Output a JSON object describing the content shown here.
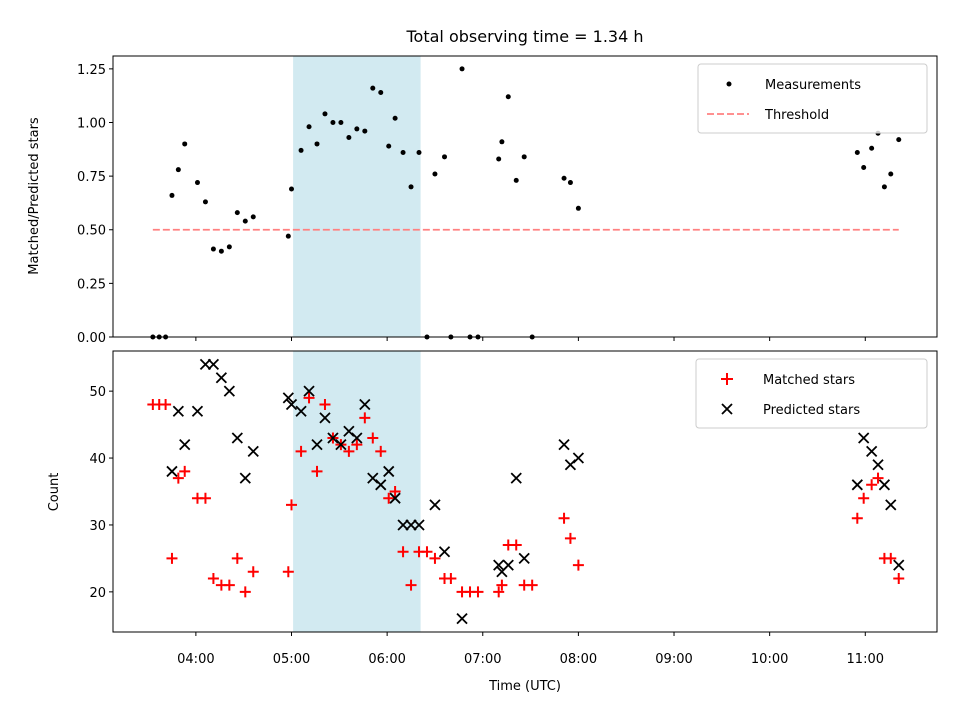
{
  "chart_data": [
    {
      "type": "scatter",
      "title": "Total observing time = 1.34 h",
      "xlabel": "",
      "ylabel": "Matched/Predicted stars",
      "xlim": [
        "03:08",
        "11:45"
      ],
      "ylim": [
        0,
        1.31
      ],
      "yticks": [
        0.0,
        0.25,
        0.5,
        0.75,
        1.0,
        1.25
      ],
      "ytick_labels": [
        "0.00",
        "0.25",
        "0.50",
        "0.75",
        "1.00",
        "1.25"
      ],
      "xticks": [
        "04:00",
        "05:00",
        "06:00",
        "07:00",
        "08:00",
        "09:00",
        "10:00",
        "11:00"
      ],
      "shaded_span": [
        "05:01",
        "06:21"
      ],
      "grid": false,
      "legend_placement": "top-right",
      "series": [
        {
          "name": "Measurements",
          "marker": "dot",
          "color": "#000000",
          "points": [
            [
              "03:33",
              0.0
            ],
            [
              "03:37",
              0.0
            ],
            [
              "03:41",
              0.0
            ],
            [
              "03:45",
              0.66
            ],
            [
              "03:49",
              0.78
            ],
            [
              "03:53",
              0.9
            ],
            [
              "04:01",
              0.72
            ],
            [
              "04:06",
              0.63
            ],
            [
              "04:11",
              0.41
            ],
            [
              "04:16",
              0.4
            ],
            [
              "04:21",
              0.42
            ],
            [
              "04:26",
              0.58
            ],
            [
              "04:31",
              0.54
            ],
            [
              "04:36",
              0.56
            ],
            [
              "04:58",
              0.47
            ],
            [
              "05:00",
              0.69
            ],
            [
              "05:06",
              0.87
            ],
            [
              "05:11",
              0.98
            ],
            [
              "05:16",
              0.9
            ],
            [
              "05:21",
              1.04
            ],
            [
              "05:26",
              1.0
            ],
            [
              "05:31",
              1.0
            ],
            [
              "05:36",
              0.93
            ],
            [
              "05:41",
              0.97
            ],
            [
              "05:46",
              0.96
            ],
            [
              "05:51",
              1.16
            ],
            [
              "05:56",
              1.14
            ],
            [
              "06:01",
              0.89
            ],
            [
              "06:05",
              1.02
            ],
            [
              "06:10",
              0.86
            ],
            [
              "06:15",
              0.7
            ],
            [
              "06:20",
              0.86
            ],
            [
              "06:25",
              0.0
            ],
            [
              "06:30",
              0.76
            ],
            [
              "06:36",
              0.84
            ],
            [
              "06:40",
              0.0
            ],
            [
              "06:47",
              1.25
            ],
            [
              "06:52",
              0.0
            ],
            [
              "06:57",
              0.0
            ],
            [
              "07:10",
              0.83
            ],
            [
              "07:12",
              0.91
            ],
            [
              "07:16",
              1.12
            ],
            [
              "07:21",
              0.73
            ],
            [
              "07:26",
              0.84
            ],
            [
              "07:31",
              0.0
            ],
            [
              "07:51",
              0.74
            ],
            [
              "07:55",
              0.72
            ],
            [
              "08:00",
              0.6
            ],
            [
              "10:55",
              0.86
            ],
            [
              "10:59",
              0.79
            ],
            [
              "11:04",
              0.88
            ],
            [
              "11:08",
              0.95
            ],
            [
              "11:12",
              0.7
            ],
            [
              "11:16",
              0.76
            ],
            [
              "11:21",
              0.92
            ]
          ]
        },
        {
          "name": "Threshold",
          "marker": "dashed-line",
          "color": "#ff8080",
          "points": [
            [
              "03:33",
              0.5
            ],
            [
              "11:21",
              0.5
            ]
          ]
        }
      ]
    },
    {
      "type": "scatter",
      "title": "",
      "xlabel": "Time (UTC)",
      "ylabel": "Count",
      "xlim": [
        "03:08",
        "11:45"
      ],
      "ylim": [
        14,
        56
      ],
      "yticks": [
        20,
        30,
        40,
        50
      ],
      "ytick_labels": [
        "20",
        "30",
        "40",
        "50"
      ],
      "xticks": [
        "04:00",
        "05:00",
        "06:00",
        "07:00",
        "08:00",
        "09:00",
        "10:00",
        "11:00"
      ],
      "shaded_span": [
        "05:01",
        "06:21"
      ],
      "grid": false,
      "legend_placement": "top-right",
      "series": [
        {
          "name": "Matched stars",
          "marker": "plus",
          "color": "#ff0000",
          "points": [
            [
              "03:33",
              48
            ],
            [
              "03:37",
              48
            ],
            [
              "03:41",
              48
            ],
            [
              "03:45",
              25
            ],
            [
              "03:49",
              37
            ],
            [
              "03:53",
              38
            ],
            [
              "04:01",
              34
            ],
            [
              "04:06",
              34
            ],
            [
              "04:11",
              22
            ],
            [
              "04:16",
              21
            ],
            [
              "04:21",
              21
            ],
            [
              "04:26",
              25
            ],
            [
              "04:31",
              20
            ],
            [
              "04:36",
              23
            ],
            [
              "04:58",
              23
            ],
            [
              "05:00",
              33
            ],
            [
              "05:06",
              41
            ],
            [
              "05:11",
              49
            ],
            [
              "05:16",
              38
            ],
            [
              "05:21",
              48
            ],
            [
              "05:26",
              43
            ],
            [
              "05:31",
              42
            ],
            [
              "05:36",
              41
            ],
            [
              "05:41",
              42
            ],
            [
              "05:46",
              46
            ],
            [
              "05:51",
              43
            ],
            [
              "05:56",
              41
            ],
            [
              "06:01",
              34
            ],
            [
              "06:05",
              35
            ],
            [
              "06:10",
              26
            ],
            [
              "06:15",
              21
            ],
            [
              "06:20",
              26
            ],
            [
              "06:25",
              26
            ],
            [
              "06:30",
              25
            ],
            [
              "06:36",
              22
            ],
            [
              "06:40",
              22
            ],
            [
              "06:47",
              20
            ],
            [
              "06:52",
              20
            ],
            [
              "06:57",
              20
            ],
            [
              "07:10",
              20
            ],
            [
              "07:12",
              21
            ],
            [
              "07:16",
              27
            ],
            [
              "07:21",
              27
            ],
            [
              "07:26",
              21
            ],
            [
              "07:31",
              21
            ],
            [
              "07:51",
              31
            ],
            [
              "07:55",
              28
            ],
            [
              "08:00",
              24
            ],
            [
              "10:55",
              31
            ],
            [
              "10:59",
              34
            ],
            [
              "11:04",
              36
            ],
            [
              "11:08",
              37
            ],
            [
              "11:12",
              25
            ],
            [
              "11:16",
              25
            ],
            [
              "11:21",
              22
            ]
          ]
        },
        {
          "name": "Predicted stars",
          "marker": "x",
          "color": "#000000",
          "points": [
            [
              "03:45",
              38
            ],
            [
              "03:49",
              47
            ],
            [
              "03:53",
              42
            ],
            [
              "04:01",
              47
            ],
            [
              "04:06",
              54
            ],
            [
              "04:11",
              54
            ],
            [
              "04:16",
              52
            ],
            [
              "04:21",
              50
            ],
            [
              "04:26",
              43
            ],
            [
              "04:31",
              37
            ],
            [
              "04:36",
              41
            ],
            [
              "04:58",
              49
            ],
            [
              "05:00",
              48
            ],
            [
              "05:06",
              47
            ],
            [
              "05:11",
              50
            ],
            [
              "05:16",
              42
            ],
            [
              "05:21",
              46
            ],
            [
              "05:26",
              43
            ],
            [
              "05:31",
              42
            ],
            [
              "05:36",
              44
            ],
            [
              "05:41",
              43
            ],
            [
              "05:46",
              48
            ],
            [
              "05:51",
              37
            ],
            [
              "05:56",
              36
            ],
            [
              "06:01",
              38
            ],
            [
              "06:05",
              34
            ],
            [
              "06:10",
              30
            ],
            [
              "06:15",
              30
            ],
            [
              "06:20",
              30
            ],
            [
              "06:30",
              33
            ],
            [
              "06:36",
              26
            ],
            [
              "06:47",
              16
            ],
            [
              "07:10",
              24
            ],
            [
              "07:12",
              23
            ],
            [
              "07:16",
              24
            ],
            [
              "07:21",
              37
            ],
            [
              "07:26",
              25
            ],
            [
              "07:51",
              42
            ],
            [
              "07:55",
              39
            ],
            [
              "08:00",
              40
            ],
            [
              "10:55",
              36
            ],
            [
              "10:59",
              43
            ],
            [
              "11:04",
              41
            ],
            [
              "11:08",
              39
            ],
            [
              "11:12",
              36
            ],
            [
              "11:16",
              33
            ],
            [
              "11:21",
              24
            ]
          ]
        }
      ]
    }
  ]
}
